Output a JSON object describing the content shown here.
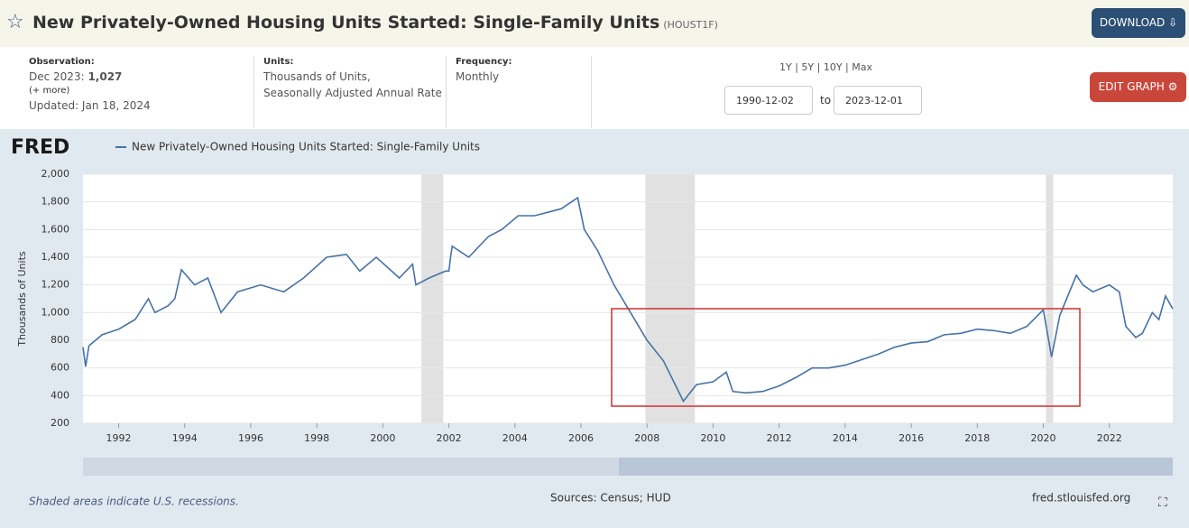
{
  "header": {
    "title": "New Privately-Owned Housing Units Started: Single-Family Units",
    "series_id": "(HOUST1F)",
    "download": "DOWNLOAD",
    "edit_graph": "EDIT GRAPH"
  },
  "info": {
    "observation": {
      "label": "Observation:",
      "period": "Dec 2023:",
      "value": "1,027",
      "more": "(+ more)",
      "updated": "Updated: Jan 18, 2024"
    },
    "units": {
      "label": "Units:",
      "lines": [
        "Thousands of Units,",
        "Seasonally Adjusted Annual Rate"
      ]
    },
    "frequency": {
      "label": "Frequency:",
      "value": "Monthly"
    },
    "ranges": [
      "1Y",
      "5Y",
      "10Y",
      "Max"
    ],
    "date_from": "1990-12-02",
    "date_to_label": "to",
    "date_to": "2023-12-01"
  },
  "chart_data": {
    "type": "line",
    "logo": "FRED",
    "ylabel": "Thousands of Units",
    "series": [
      {
        "name": "New Privately-Owned Housing Units Started: Single-Family Units",
        "color": "#4572a7",
        "values": [
          750,
          610,
          760,
          840,
          880,
          950,
          1100,
          1000,
          1050,
          1100,
          1310,
          1200,
          1250,
          1000,
          1150,
          1200,
          1150,
          1250,
          1400,
          1420,
          1300,
          1400,
          1250,
          1350,
          1200,
          1250,
          1300,
          1300,
          1400,
          1480,
          1400,
          1550,
          1600,
          1700,
          1700,
          1750,
          1830,
          1600,
          1450,
          1200,
          1000,
          800,
          650,
          360,
          480,
          500,
          570,
          430,
          420,
          430,
          470,
          530,
          600,
          600,
          620,
          660,
          700,
          750,
          780,
          790,
          840,
          850,
          880,
          870,
          850,
          900,
          1020,
          680,
          980,
          1270,
          1200,
          1150,
          1200,
          1150,
          900,
          820,
          850,
          1000,
          950,
          1120,
          1027
        ]
      }
    ],
    "x": [
      1990.92,
      1991.0,
      1991.1,
      1991.5,
      1992.0,
      1992.5,
      1992.9,
      1993.1,
      1993.5,
      1993.7,
      1993.9,
      1994.3,
      1994.7,
      1995.1,
      1995.6,
      1996.3,
      1997.0,
      1997.6,
      1998.3,
      1998.9,
      1999.3,
      1999.8,
      2000.5,
      2000.9,
      2001.0,
      2001.4,
      2001.9,
      2002.0,
      2002.05,
      2002.1,
      2002.6,
      2003.2,
      2003.6,
      2004.1,
      2004.6,
      2005.4,
      2005.9,
      2006.1,
      2006.5,
      2007.0,
      2007.5,
      2008.0,
      2008.5,
      2009.1,
      2009.5,
      2010.0,
      2010.4,
      2010.6,
      2011.0,
      2011.5,
      2012.0,
      2012.5,
      2013.0,
      2013.5,
      2014.0,
      2014.5,
      2015.0,
      2015.5,
      2016.0,
      2016.5,
      2017.0,
      2017.5,
      2018.0,
      2018.5,
      2019.0,
      2019.5,
      2020.0,
      2020.25,
      2020.5,
      2021.0,
      2021.2,
      2021.5,
      2022.0,
      2022.3,
      2022.5,
      2022.8,
      2023.0,
      2023.3,
      2023.5,
      2023.7,
      2023.92
    ],
    "recessions": [
      [
        2001.17,
        2001.83
      ],
      [
        2007.95,
        2009.45
      ],
      [
        2020.08,
        2020.3
      ]
    ],
    "xlim": [
      1990.92,
      2023.92
    ],
    "xticks": [
      1992,
      1994,
      1996,
      1998,
      2000,
      2002,
      2004,
      2006,
      2008,
      2010,
      2012,
      2014,
      2016,
      2018,
      2020,
      2022
    ],
    "ylim": [
      200,
      2000
    ],
    "yticks": [
      200,
      400,
      600,
      800,
      {
        "value": 1000,
        "label": "1,000"
      },
      {
        "value": 1200,
        "label": "1,200"
      },
      {
        "value": 1400,
        "label": "1,400"
      },
      {
        "value": 1600,
        "label": "1,600"
      },
      {
        "value": 1800,
        "label": "1,800"
      },
      {
        "value": 2000,
        "label": "2,000"
      }
    ],
    "grid": true
  },
  "footer": {
    "note": "Shaded areas indicate U.S. recessions.",
    "sources": "Sources: Census; HUD",
    "site": "fred.stlouisfed.org"
  }
}
